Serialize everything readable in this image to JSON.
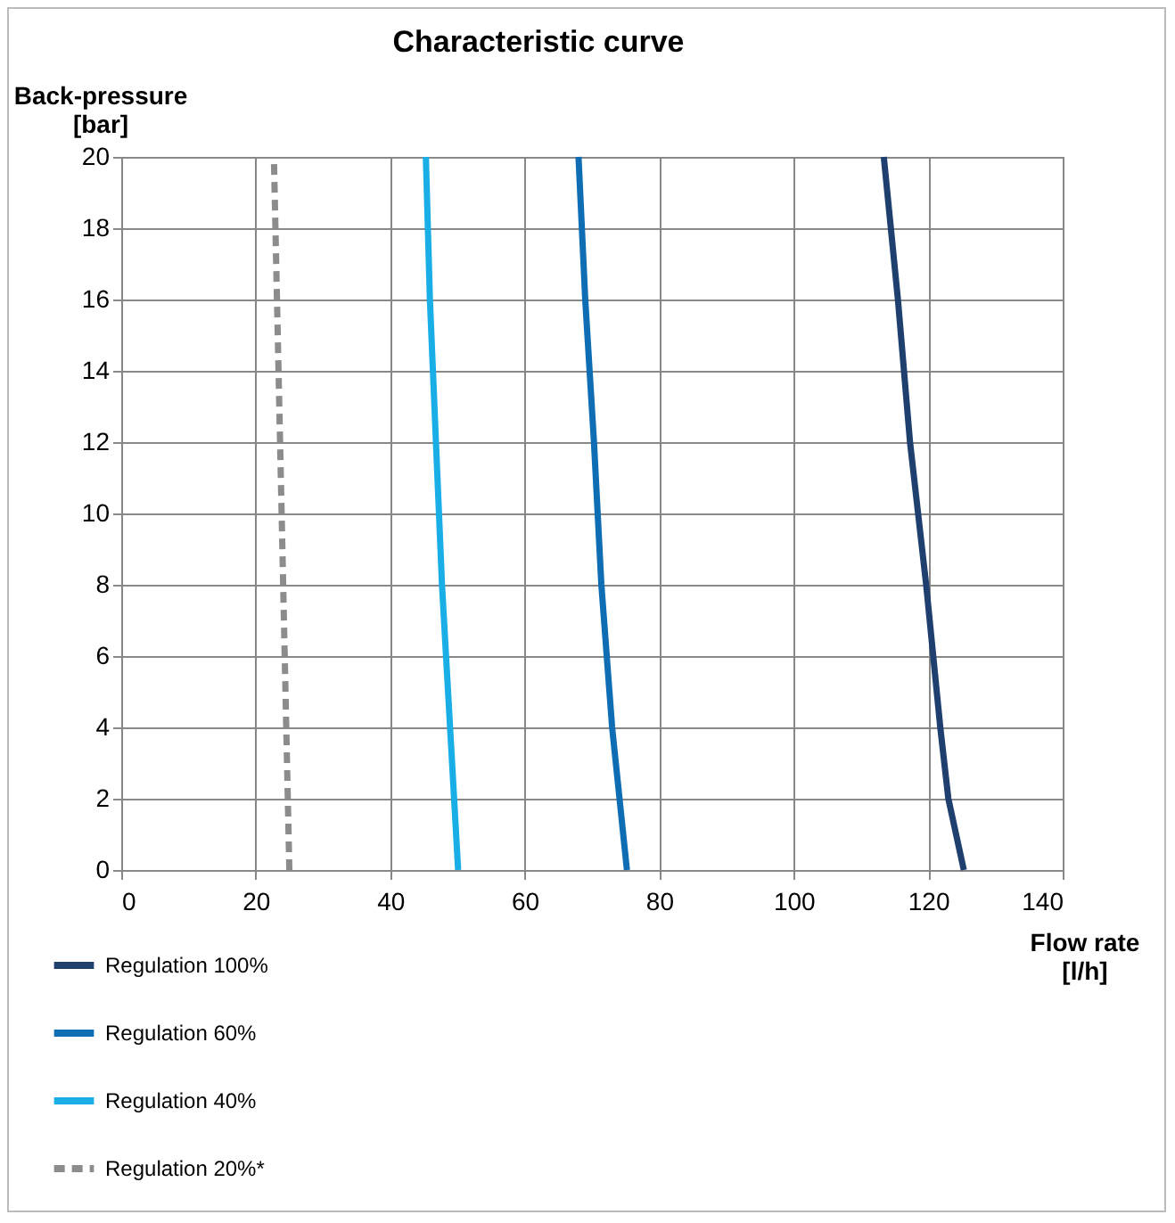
{
  "chart_data": {
    "type": "line",
    "title": "Characteristic curve",
    "xlabel": "Flow rate [l/h]",
    "ylabel": "Back-pressure [bar]",
    "xlim": [
      0,
      140
    ],
    "xticks": [
      0,
      20,
      40,
      60,
      80,
      100,
      120,
      140
    ],
    "ylim": [
      0,
      20
    ],
    "yticks": [
      0,
      2,
      4,
      6,
      8,
      10,
      12,
      14,
      16,
      18,
      20
    ],
    "grid": true,
    "legend": "bottom left",
    "marker": "none",
    "series": [
      {
        "name": "Regulation 100%",
        "color": "#1f3f6e",
        "line_style": "solid",
        "x": [
          125.3,
          123,
          121.8,
          119.7,
          117.3,
          115.5,
          113.4
        ],
        "values": [
          0,
          2,
          4,
          8,
          12,
          16,
          20
        ]
      },
      {
        "name": "Regulation 60%",
        "color": "#0f6db4",
        "line_style": "solid",
        "x": [
          75.2,
          73,
          71.4,
          70.3,
          69,
          68
        ],
        "values": [
          0,
          4,
          8,
          12,
          16,
          20
        ]
      },
      {
        "name": "Regulation 40%",
        "color": "#1aaee6",
        "line_style": "solid",
        "x": [
          50.1,
          47.7,
          45.9,
          45.3
        ],
        "values": [
          0,
          8,
          16,
          20
        ]
      },
      {
        "name": "Regulation 20%*",
        "color": "#8c8c8c",
        "line_style": "dashed",
        "x": [
          25,
          22.7
        ],
        "values": [
          0,
          20
        ]
      }
    ]
  }
}
